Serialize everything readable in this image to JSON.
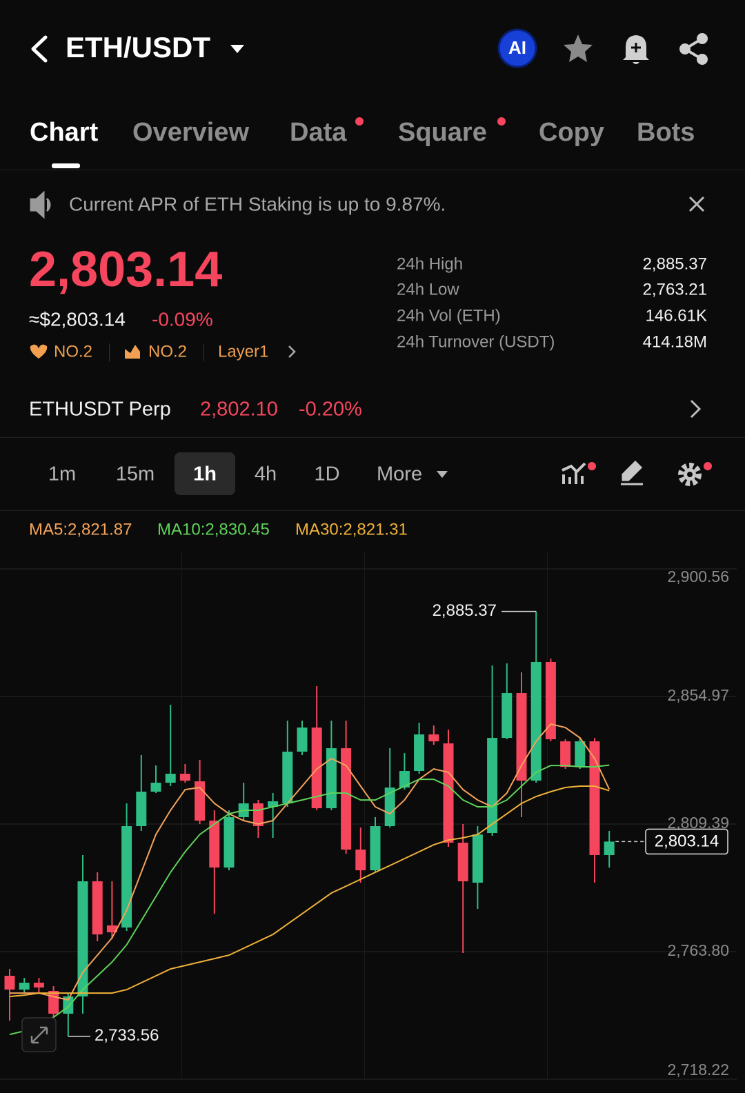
{
  "header": {
    "pair": "ETH/USDT",
    "ai": "AI"
  },
  "tabs": [
    "Chart",
    "Overview",
    "Data",
    "Square",
    "Copy",
    "Bots"
  ],
  "notice": "Current APR of ETH Staking is up to 9.87%.",
  "price": {
    "last": "2,803.14",
    "fiat": "≈$2,803.14",
    "change": "-0.09%",
    "tags": [
      "NO.2",
      "NO.2",
      "Layer1"
    ]
  },
  "stats": [
    {
      "label": "24h High",
      "value": "2,885.37"
    },
    {
      "label": "24h Low",
      "value": "2,763.21"
    },
    {
      "label": "24h Vol (ETH)",
      "value": "146.61K"
    },
    {
      "label": "24h Turnover (USDT)",
      "value": "414.18M"
    }
  ],
  "perp": {
    "name": "ETHUSDT Perp",
    "price": "2,802.10",
    "change": "-0.20%"
  },
  "intervals": [
    "1m",
    "15m",
    "1h",
    "4h",
    "1D",
    "More"
  ],
  "chart_data": {
    "type": "candlestick",
    "up_color": "#2ebd85",
    "down_color": "#f6465d",
    "open": [
      2755.18,
      2750.25,
      2752.71,
      2749.76,
      2741.63,
      2747.78,
      2788.94,
      2773.16,
      2772.42,
      2808.65,
      2820.97,
      2824.17,
      2827.37,
      2824.66,
      2810.62,
      2793.86,
      2811.85,
      2816.78,
      2815.54,
      2816.78,
      2835.26,
      2843.88,
      2815.05,
      2836.49,
      2800.27,
      2792.87,
      2808.65,
      2822.44,
      2828.36,
      2841.42,
      2838.21,
      2802.73,
      2788.44,
      2806.18,
      2840.18,
      2856.2,
      2824.91,
      2867.29,
      2838.95,
      2829.83,
      2838.95,
      2798.3
    ],
    "high": [
      2757.64,
      2754.44,
      2754.44,
      2751.48,
      2749.02,
      2798.3,
      2792.14,
      2788.94,
      2816.78,
      2834.03,
      2830.33,
      2852.02,
      2830.82,
      2832.3,
      2814.31,
      2814.31,
      2824.17,
      2818.01,
      2820.47,
      2846.35,
      2846.35,
      2858.67,
      2846.35,
      2846.35,
      2808.15,
      2811.85,
      2836.49,
      2834.76,
      2845.61,
      2844.62,
      2843.14,
      2809.38,
      2808.65,
      2866.06,
      2866.8,
      2863.6,
      2885.37,
      2868.52,
      2839.69,
      2840.18,
      2840.18,
      2806.92
    ],
    "low": [
      2739.16,
      2749.02,
      2749.02,
      2740.39,
      2733.56,
      2741.63,
      2767.49,
      2768.23,
      2771.19,
      2806.92,
      2820.47,
      2822.94,
      2824.17,
      2809.38,
      2777.35,
      2792.87,
      2810.62,
      2804.46,
      2804.46,
      2815.54,
      2834.03,
      2814.31,
      2814.31,
      2798.79,
      2788.44,
      2792.14,
      2808.15,
      2821.7,
      2827.37,
      2837.72,
      2801.25,
      2763.3,
      2779.07,
      2805.19,
      2839.69,
      2811.85,
      2824.17,
      2838.95,
      2829.1,
      2829.1,
      2788.44,
      2793.86
    ],
    "close": [
      2750.25,
      2752.71,
      2750.99,
      2741.63,
      2747.78,
      2788.94,
      2769.96,
      2770.7,
      2808.65,
      2820.97,
      2824.17,
      2827.37,
      2824.91,
      2810.62,
      2793.86,
      2811.85,
      2816.78,
      2808.65,
      2817.52,
      2835.26,
      2843.88,
      2815.05,
      2836.49,
      2800.27,
      2792.87,
      2808.65,
      2822.44,
      2828.36,
      2841.42,
      2838.95,
      2802.73,
      2788.94,
      2805.68,
      2840.18,
      2856.2,
      2824.91,
      2867.29,
      2839.69,
      2829.83,
      2838.95,
      2798.3,
      2803.14
    ],
    "lines": [
      {
        "name": "MA5:2,821.87",
        "color": "#f5a35a",
        "values": [
          2749.0,
          2749.0,
          2749.0,
          2747.77,
          2746.54,
          2756.39,
          2762.55,
          2768.72,
          2778.57,
          2792.13,
          2805.68,
          2814.31,
          2821.7,
          2822.44,
          2816.77,
          2813.07,
          2810.61,
          2809.38,
          2810.61,
          2816.77,
          2822.93,
          2829.09,
          2832.79,
          2830.32,
          2822.93,
          2815.54,
          2813.07,
          2818.0,
          2825.39,
          2829.09,
          2827.86,
          2821.7,
          2818.0,
          2815.54,
          2820.47,
          2830.32,
          2838.95,
          2845.11,
          2843.88,
          2840.18,
          2832.79,
          2821.87
        ]
      },
      {
        "name": "MA10:2,830.45",
        "color": "#5fd35a",
        "values": [
          2734.21,
          2735.45,
          2737.91,
          2740.38,
          2744.07,
          2750.23,
          2755.16,
          2760.09,
          2766.25,
          2774.88,
          2783.5,
          2792.13,
          2799.52,
          2805.68,
          2809.38,
          2813.07,
          2814.31,
          2814.31,
          2815.54,
          2816.77,
          2818.0,
          2819.24,
          2820.47,
          2820.47,
          2818.0,
          2818.0,
          2820.47,
          2822.93,
          2825.39,
          2825.39,
          2822.93,
          2818.0,
          2815.54,
          2815.54,
          2818.0,
          2822.93,
          2827.86,
          2830.32,
          2830.32,
          2829.83,
          2829.83,
          2830.45
        ]
      },
      {
        "name": "MA30:2,821.31",
        "color": "#f0b23a",
        "values": [
          2747.77,
          2748.26,
          2749.0,
          2749.0,
          2749.0,
          2749.0,
          2749.0,
          2749.0,
          2750.23,
          2752.7,
          2755.16,
          2757.63,
          2758.86,
          2760.09,
          2761.32,
          2762.55,
          2765.02,
          2767.48,
          2769.95,
          2773.64,
          2777.34,
          2781.04,
          2784.74,
          2787.2,
          2789.66,
          2792.13,
          2794.59,
          2797.05,
          2799.52,
          2801.98,
          2803.71,
          2804.45,
          2805.68,
          2809.38,
          2813.07,
          2816.77,
          2819.24,
          2820.96,
          2822.44,
          2822.93,
          2822.93,
          2821.31
        ]
      }
    ],
    "ylim": [
      2718.22,
      2906.72
    ],
    "yticks": [
      {
        "value": 2900.56,
        "label": "2,900.56"
      },
      {
        "value": 2854.97,
        "label": "2,854.97"
      },
      {
        "value": 2809.39,
        "label": "2,809.39"
      },
      {
        "value": 2763.8,
        "label": "2,763.80"
      },
      {
        "value": 2718.22,
        "label": "2,718.22"
      }
    ],
    "grid": true,
    "high_marker": {
      "value": 2885.37,
      "label": "2,885.37"
    },
    "low_marker": {
      "value": 2733.56,
      "label": "2,733.56"
    },
    "last_marker": {
      "value": 2803.14,
      "label": "2,803.14"
    }
  }
}
